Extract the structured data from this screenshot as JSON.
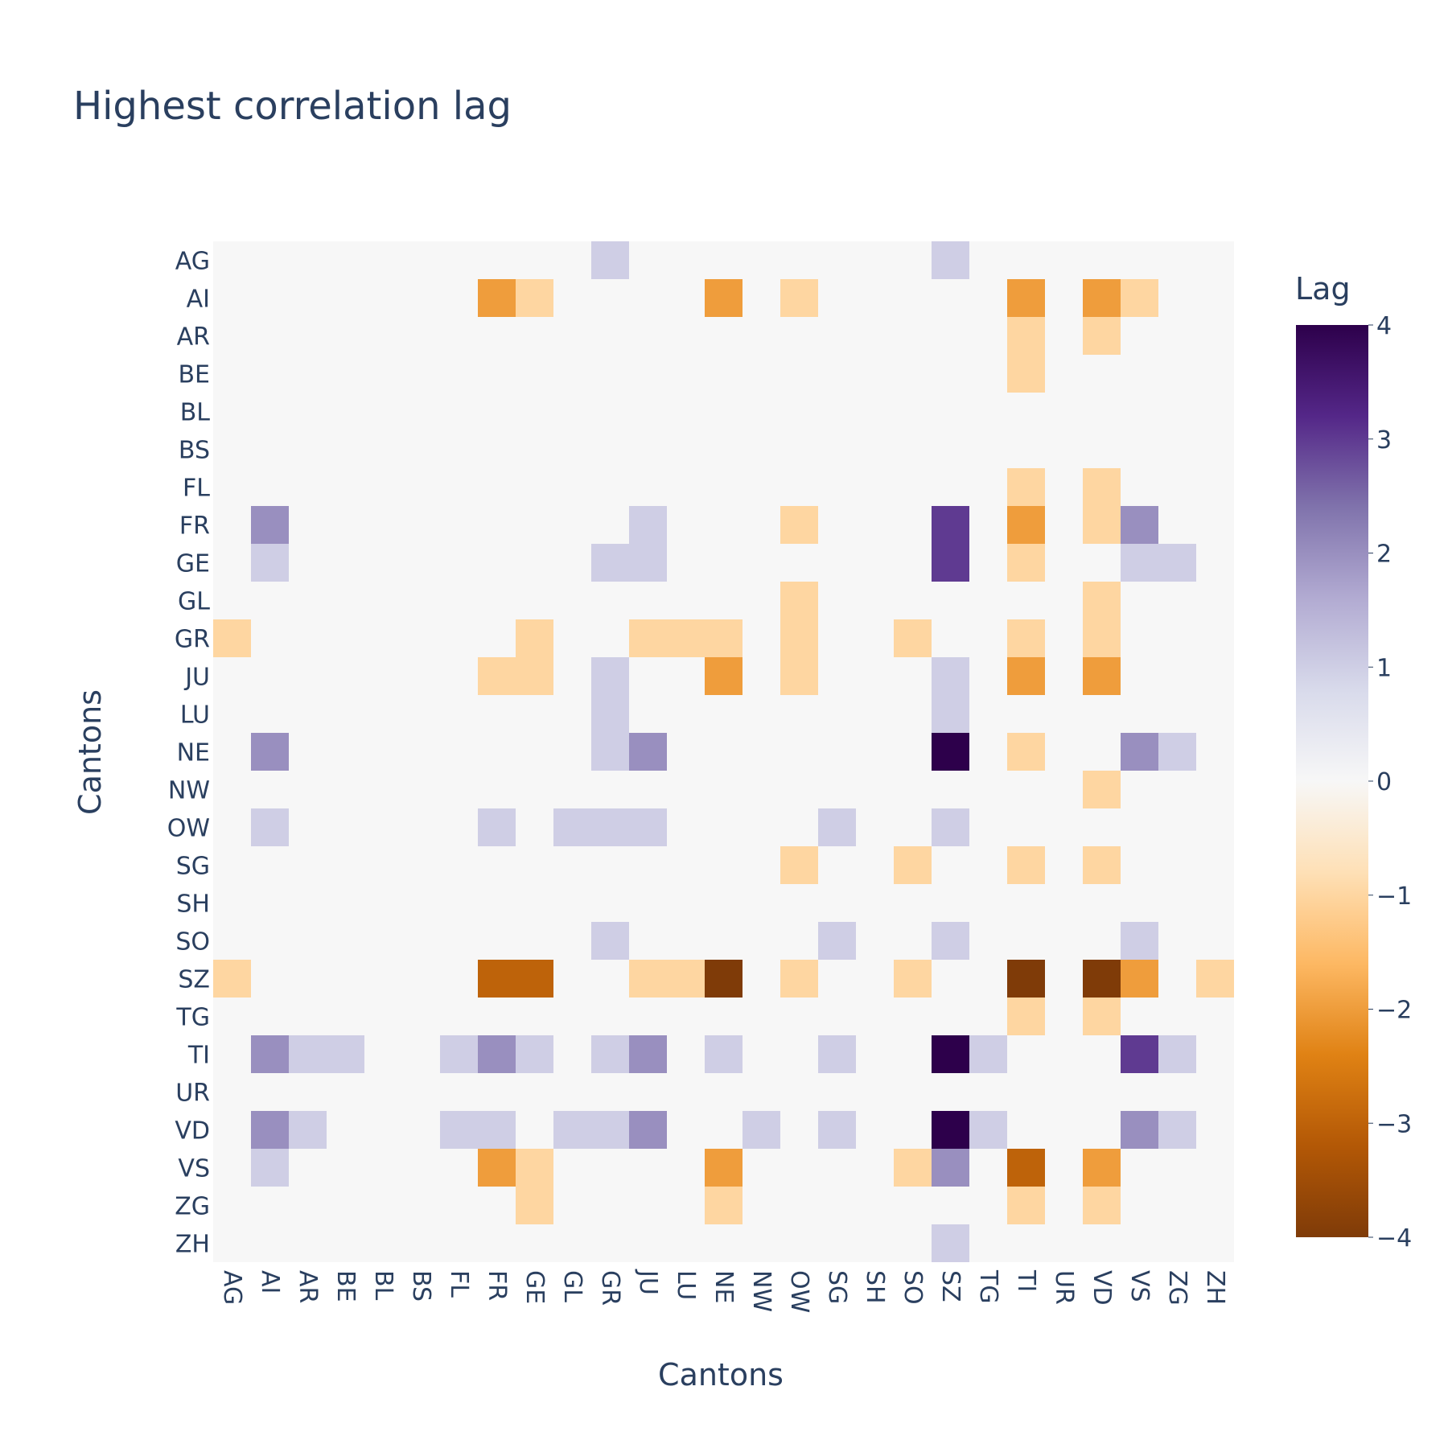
{
  "chart_data": {
    "type": "heatmap",
    "title": "Highest correlation lag",
    "xlabel": "Cantons",
    "ylabel": "Cantons",
    "x": [
      "AG",
      "AI",
      "AR",
      "BE",
      "BL",
      "BS",
      "FL",
      "FR",
      "GE",
      "GL",
      "GR",
      "JU",
      "LU",
      "NE",
      "NW",
      "OW",
      "SG",
      "SH",
      "SO",
      "SZ",
      "TG",
      "TI",
      "UR",
      "VD",
      "VS",
      "ZG",
      "ZH"
    ],
    "y": [
      "AG",
      "AI",
      "AR",
      "BE",
      "BL",
      "BS",
      "FL",
      "FR",
      "GE",
      "GL",
      "GR",
      "JU",
      "LU",
      "NE",
      "NW",
      "OW",
      "SG",
      "SH",
      "SO",
      "SZ",
      "TG",
      "TI",
      "UR",
      "VD",
      "VS",
      "ZG",
      "ZH"
    ],
    "z": [
      [
        0,
        0,
        0,
        0,
        0,
        0,
        0,
        0,
        0,
        0,
        1,
        0,
        0,
        0,
        0,
        0,
        0,
        0,
        0,
        1,
        0,
        0,
        0,
        0,
        0,
        0,
        0
      ],
      [
        0,
        0,
        0,
        0,
        0,
        0,
        0,
        -2,
        -1,
        0,
        0,
        0,
        0,
        -2,
        0,
        -1,
        0,
        0,
        0,
        0,
        0,
        -2,
        0,
        -2,
        -1,
        0,
        0
      ],
      [
        0,
        0,
        0,
        0,
        0,
        0,
        0,
        0,
        0,
        0,
        0,
        0,
        0,
        0,
        0,
        0,
        0,
        0,
        0,
        0,
        0,
        -1,
        0,
        -1,
        0,
        0,
        0
      ],
      [
        0,
        0,
        0,
        0,
        0,
        0,
        0,
        0,
        0,
        0,
        0,
        0,
        0,
        0,
        0,
        0,
        0,
        0,
        0,
        0,
        0,
        -1,
        0,
        0,
        0,
        0,
        0
      ],
      [
        0,
        0,
        0,
        0,
        0,
        0,
        0,
        0,
        0,
        0,
        0,
        0,
        0,
        0,
        0,
        0,
        0,
        0,
        0,
        0,
        0,
        0,
        0,
        0,
        0,
        0,
        0
      ],
      [
        0,
        0,
        0,
        0,
        0,
        0,
        0,
        0,
        0,
        0,
        0,
        0,
        0,
        0,
        0,
        0,
        0,
        0,
        0,
        0,
        0,
        0,
        0,
        0,
        0,
        0,
        0
      ],
      [
        0,
        0,
        0,
        0,
        0,
        0,
        0,
        0,
        0,
        0,
        0,
        0,
        0,
        0,
        0,
        0,
        0,
        0,
        0,
        0,
        0,
        -1,
        0,
        -1,
        0,
        0,
        0
      ],
      [
        0,
        2,
        0,
        0,
        0,
        0,
        0,
        0,
        0,
        0,
        0,
        1,
        0,
        0,
        0,
        -1,
        0,
        0,
        0,
        3,
        0,
        -2,
        0,
        -1,
        2,
        0,
        0
      ],
      [
        0,
        1,
        0,
        0,
        0,
        0,
        0,
        0,
        0,
        0,
        1,
        1,
        0,
        0,
        0,
        0,
        0,
        0,
        0,
        3,
        0,
        -1,
        0,
        0,
        1,
        1,
        0
      ],
      [
        0,
        0,
        0,
        0,
        0,
        0,
        0,
        0,
        0,
        0,
        0,
        0,
        0,
        0,
        0,
        -1,
        0,
        0,
        0,
        0,
        0,
        0,
        0,
        -1,
        0,
        0,
        0
      ],
      [
        -1,
        0,
        0,
        0,
        0,
        0,
        0,
        0,
        -1,
        0,
        0,
        -1,
        -1,
        -1,
        0,
        -1,
        0,
        0,
        -1,
        0,
        0,
        -1,
        0,
        -1,
        0,
        0,
        0
      ],
      [
        0,
        0,
        0,
        0,
        0,
        0,
        0,
        -1,
        -1,
        0,
        1,
        0,
        0,
        -2,
        0,
        -1,
        0,
        0,
        0,
        1,
        0,
        -2,
        0,
        -2,
        0,
        0,
        0
      ],
      [
        0,
        0,
        0,
        0,
        0,
        0,
        0,
        0,
        0,
        0,
        1,
        0,
        0,
        0,
        0,
        0,
        0,
        0,
        0,
        1,
        0,
        0,
        0,
        0,
        0,
        0,
        0
      ],
      [
        0,
        2,
        0,
        0,
        0,
        0,
        0,
        0,
        0,
        0,
        1,
        2,
        0,
        0,
        0,
        0,
        0,
        0,
        0,
        4,
        0,
        -1,
        0,
        0,
        2,
        1,
        0
      ],
      [
        0,
        0,
        0,
        0,
        0,
        0,
        0,
        0,
        0,
        0,
        0,
        0,
        0,
        0,
        0,
        0,
        0,
        0,
        0,
        0,
        0,
        0,
        0,
        -1,
        0,
        0,
        0
      ],
      [
        0,
        1,
        0,
        0,
        0,
        0,
        0,
        1,
        0,
        1,
        1,
        1,
        0,
        0,
        0,
        0,
        1,
        0,
        0,
        1,
        0,
        0,
        0,
        0,
        0,
        0,
        0
      ],
      [
        0,
        0,
        0,
        0,
        0,
        0,
        0,
        0,
        0,
        0,
        0,
        0,
        0,
        0,
        0,
        -1,
        0,
        0,
        -1,
        0,
        0,
        -1,
        0,
        -1,
        0,
        0,
        0
      ],
      [
        0,
        0,
        0,
        0,
        0,
        0,
        0,
        0,
        0,
        0,
        0,
        0,
        0,
        0,
        0,
        0,
        0,
        0,
        0,
        0,
        0,
        0,
        0,
        0,
        0,
        0,
        0
      ],
      [
        0,
        0,
        0,
        0,
        0,
        0,
        0,
        0,
        0,
        0,
        1,
        0,
        0,
        0,
        0,
        0,
        1,
        0,
        0,
        1,
        0,
        0,
        0,
        0,
        1,
        0,
        0
      ],
      [
        -1,
        0,
        0,
        0,
        0,
        0,
        0,
        -3,
        -3,
        0,
        0,
        -1,
        -1,
        -4,
        0,
        -1,
        0,
        0,
        -1,
        0,
        0,
        -4,
        0,
        -4,
        -2,
        0,
        -1
      ],
      [
        0,
        0,
        0,
        0,
        0,
        0,
        0,
        0,
        0,
        0,
        0,
        0,
        0,
        0,
        0,
        0,
        0,
        0,
        0,
        0,
        0,
        -1,
        0,
        -1,
        0,
        0,
        0
      ],
      [
        0,
        2,
        1,
        1,
        0,
        0,
        1,
        2,
        1,
        0,
        1,
        2,
        0,
        1,
        0,
        0,
        1,
        0,
        0,
        4,
        1,
        0,
        0,
        0,
        3,
        1,
        0
      ],
      [
        0,
        0,
        0,
        0,
        0,
        0,
        0,
        0,
        0,
        0,
        0,
        0,
        0,
        0,
        0,
        0,
        0,
        0,
        0,
        0,
        0,
        0,
        0,
        0,
        0,
        0,
        0
      ],
      [
        0,
        2,
        1,
        0,
        0,
        0,
        1,
        1,
        0,
        1,
        1,
        2,
        0,
        0,
        1,
        0,
        1,
        0,
        0,
        4,
        1,
        0,
        0,
        0,
        2,
        1,
        0
      ],
      [
        0,
        1,
        0,
        0,
        0,
        0,
        0,
        -2,
        -1,
        0,
        0,
        0,
        0,
        -2,
        0,
        0,
        0,
        0,
        -1,
        2,
        0,
        -3,
        0,
        -2,
        0,
        0,
        0
      ],
      [
        0,
        0,
        0,
        0,
        0,
        0,
        0,
        0,
        -1,
        0,
        0,
        0,
        0,
        -1,
        0,
        0,
        0,
        0,
        0,
        0,
        0,
        -1,
        0,
        -1,
        0,
        0,
        0
      ],
      [
        0,
        0,
        0,
        0,
        0,
        0,
        0,
        0,
        0,
        0,
        0,
        0,
        0,
        0,
        0,
        0,
        0,
        0,
        0,
        1,
        0,
        0,
        0,
        0,
        0,
        0,
        0
      ]
    ],
    "zrange": [
      -4,
      4
    ],
    "colorbar": {
      "title": "Lag",
      "ticks": [
        "4",
        "3",
        "2",
        "1",
        "0",
        "−1",
        "−2",
        "−3",
        "−4"
      ]
    },
    "colorscale": [
      "#7f3b08",
      "#b35806",
      "#e08214",
      "#fdb863",
      "#fee0b6",
      "#f7f7f7",
      "#d8daeb",
      "#b2abd2",
      "#8073ac",
      "#542788",
      "#2d004b"
    ],
    "plot_background": "#f7f7f7"
  }
}
